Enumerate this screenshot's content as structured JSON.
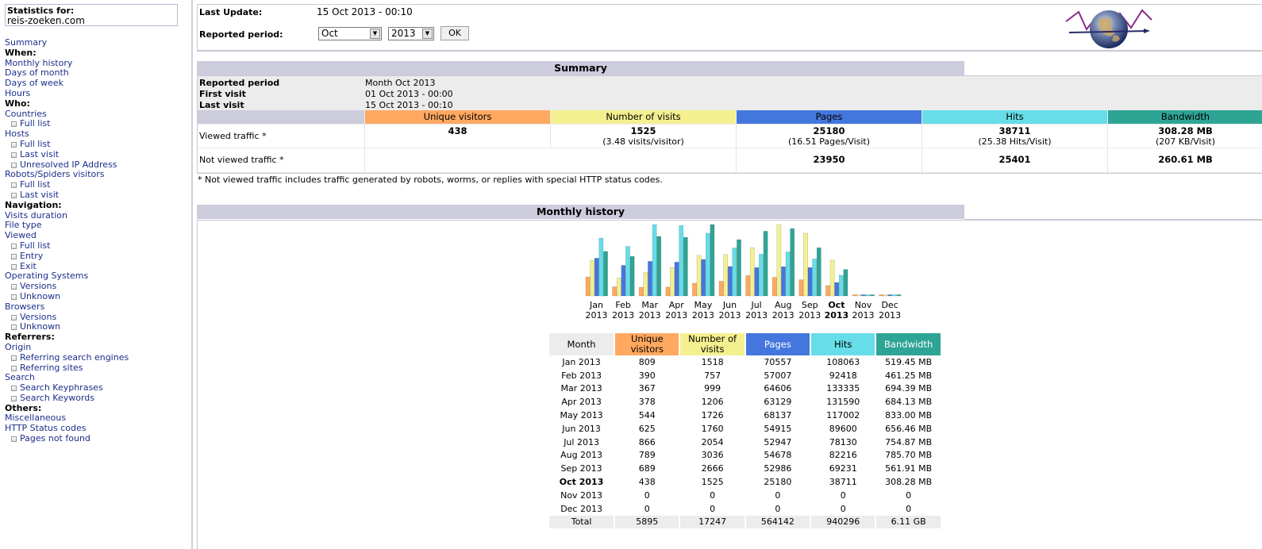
{
  "menu": {
    "stats_title": "Statistics for:",
    "domain": "reis-zoeken.com",
    "items": [
      {
        "label": "Summary",
        "type": "link",
        "level": 0
      },
      {
        "label": "When:",
        "type": "heading",
        "level": 0
      },
      {
        "label": "Monthly history",
        "type": "link",
        "level": 0
      },
      {
        "label": "Days of month",
        "type": "link",
        "level": 0
      },
      {
        "label": "Days of week",
        "type": "link",
        "level": 0
      },
      {
        "label": "Hours",
        "type": "link",
        "level": 0
      },
      {
        "label": "Who:",
        "type": "heading",
        "level": 0
      },
      {
        "label": "Countries",
        "type": "link",
        "level": 0
      },
      {
        "label": "Full list",
        "type": "link",
        "level": 1
      },
      {
        "label": "Hosts",
        "type": "link",
        "level": 0
      },
      {
        "label": "Full list",
        "type": "link",
        "level": 1
      },
      {
        "label": "Last visit",
        "type": "link",
        "level": 1
      },
      {
        "label": "Unresolved IP Address",
        "type": "link",
        "level": 1
      },
      {
        "label": "Robots/Spiders visitors",
        "type": "link",
        "level": 0
      },
      {
        "label": "Full list",
        "type": "link",
        "level": 1
      },
      {
        "label": "Last visit",
        "type": "link",
        "level": 1
      },
      {
        "label": "Navigation:",
        "type": "heading",
        "level": 0
      },
      {
        "label": "Visits duration",
        "type": "link",
        "level": 0
      },
      {
        "label": "File type",
        "type": "link",
        "level": 0
      },
      {
        "label": "Viewed",
        "type": "link",
        "level": 0
      },
      {
        "label": "Full list",
        "type": "link",
        "level": 1
      },
      {
        "label": "Entry",
        "type": "link",
        "level": 1
      },
      {
        "label": "Exit",
        "type": "link",
        "level": 1
      },
      {
        "label": "Operating Systems",
        "type": "link",
        "level": 0
      },
      {
        "label": "Versions",
        "type": "link",
        "level": 1
      },
      {
        "label": "Unknown",
        "type": "link",
        "level": 1
      },
      {
        "label": "Browsers",
        "type": "link",
        "level": 0
      },
      {
        "label": "Versions",
        "type": "link",
        "level": 1
      },
      {
        "label": "Unknown",
        "type": "link",
        "level": 1
      },
      {
        "label": "Referrers:",
        "type": "heading",
        "level": 0
      },
      {
        "label": "Origin",
        "type": "link",
        "level": 0
      },
      {
        "label": "Referring search engines",
        "type": "link",
        "level": 1
      },
      {
        "label": "Referring sites",
        "type": "link",
        "level": 1
      },
      {
        "label": "Search",
        "type": "link",
        "level": 0
      },
      {
        "label": "Search Keyphrases",
        "type": "link",
        "level": 1
      },
      {
        "label": "Search Keywords",
        "type": "link",
        "level": 1
      },
      {
        "label": "Others:",
        "type": "heading",
        "level": 0
      },
      {
        "label": "Miscellaneous",
        "type": "link",
        "level": 0
      },
      {
        "label": "HTTP Status codes",
        "type": "link",
        "level": 0
      },
      {
        "label": "Pages not found",
        "type": "link",
        "level": 1
      }
    ]
  },
  "header": {
    "last_update_label": "Last Update:",
    "last_update_value": "15 Oct 2013 - 00:10",
    "period_label": "Reported period:",
    "month_select": "Oct",
    "year_select": "2013",
    "ok_label": "OK"
  },
  "colors": {
    "visitors": "#ffa860",
    "visits": "#f4f090",
    "pages": "#4477dd",
    "hits": "#66dde8",
    "bandwidth": "#2ea495",
    "section_bg": "#ccccdd"
  },
  "summary": {
    "title": "Summary",
    "reported_period_label": "Reported period",
    "reported_period_value": "Month Oct 2013",
    "first_visit_label": "First visit",
    "first_visit_value": "01 Oct 2013 - 00:00",
    "last_visit_label": "Last visit",
    "last_visit_value": "15 Oct 2013 - 00:10",
    "columns": [
      "Unique visitors",
      "Number of visits",
      "Pages",
      "Hits",
      "Bandwidth"
    ],
    "viewed_label": "Viewed traffic *",
    "viewed": {
      "visitors": "438",
      "visits": "1525",
      "visits_sub": "(3.48 visits/visitor)",
      "pages": "25180",
      "pages_sub": "(16.51 Pages/Visit)",
      "hits": "38711",
      "hits_sub": "(25.38 Hits/Visit)",
      "bandwidth": "308.28 MB",
      "bandwidth_sub": "(207 KB/Visit)"
    },
    "not_viewed_label": "Not viewed traffic *",
    "not_viewed": {
      "pages": "23950",
      "hits": "25401",
      "bandwidth": "260.61 MB"
    },
    "footnote": "* Not viewed traffic includes traffic generated by robots, worms, or replies with special HTTP status codes."
  },
  "history": {
    "title": "Monthly history",
    "columns": [
      "Month",
      "Unique visitors",
      "Number of visits",
      "Pages",
      "Hits",
      "Bandwidth"
    ],
    "rows": [
      [
        "Jan 2013",
        "809",
        "1518",
        "70557",
        "108063",
        "519.45 MB"
      ],
      [
        "Feb 2013",
        "390",
        "757",
        "57007",
        "92418",
        "461.25 MB"
      ],
      [
        "Mar 2013",
        "367",
        "999",
        "64606",
        "133335",
        "694.39 MB"
      ],
      [
        "Apr 2013",
        "378",
        "1206",
        "63129",
        "131590",
        "684.13 MB"
      ],
      [
        "May 2013",
        "544",
        "1726",
        "68137",
        "117002",
        "833.00 MB"
      ],
      [
        "Jun 2013",
        "625",
        "1760",
        "54915",
        "89600",
        "656.46 MB"
      ],
      [
        "Jul 2013",
        "866",
        "2054",
        "52947",
        "78130",
        "754.87 MB"
      ],
      [
        "Aug 2013",
        "789",
        "3036",
        "54678",
        "82216",
        "785.70 MB"
      ],
      [
        "Sep 2013",
        "689",
        "2666",
        "52986",
        "69231",
        "561.91 MB"
      ],
      [
        "Oct 2013",
        "438",
        "1525",
        "25180",
        "38711",
        "308.28 MB"
      ],
      [
        "Nov 2013",
        "0",
        "0",
        "0",
        "0",
        "0"
      ],
      [
        "Dec 2013",
        "0",
        "0",
        "0",
        "0",
        "0"
      ]
    ],
    "current_month_index": 9,
    "total": [
      "Total",
      "5895",
      "17247",
      "564142",
      "940296",
      "6.11 GB"
    ]
  },
  "chart_data": {
    "type": "bar",
    "categories": [
      "Jan",
      "Feb",
      "Mar",
      "Apr",
      "May",
      "Jun",
      "Jul",
      "Aug",
      "Sep",
      "Oct",
      "Nov",
      "Dec"
    ],
    "category_years": [
      "2013",
      "2013",
      "2013",
      "2013",
      "2013",
      "2013",
      "2013",
      "2013",
      "2013",
      "2013",
      "2013",
      "2013"
    ],
    "series": [
      {
        "name": "Unique visitors",
        "values": [
          809,
          390,
          367,
          378,
          544,
          625,
          866,
          789,
          689,
          438,
          0,
          0
        ]
      },
      {
        "name": "Number of visits",
        "values": [
          1518,
          757,
          999,
          1206,
          1726,
          1760,
          2054,
          3036,
          2666,
          1525,
          0,
          0
        ]
      },
      {
        "name": "Pages",
        "values": [
          70557,
          57007,
          64606,
          63129,
          68137,
          54915,
          52947,
          54678,
          52986,
          25180,
          0,
          0
        ]
      },
      {
        "name": "Hits",
        "values": [
          108063,
          92418,
          133335,
          131590,
          117002,
          89600,
          78130,
          82216,
          69231,
          38711,
          0,
          0
        ]
      },
      {
        "name": "Bandwidth",
        "values": [
          519.45,
          461.25,
          694.39,
          684.13,
          833.0,
          656.46,
          754.87,
          785.7,
          561.91,
          308.28,
          0,
          0
        ]
      }
    ],
    "scale_groups": [
      [
        0,
        1
      ],
      [
        2,
        3
      ],
      [
        4
      ]
    ],
    "highlight_category": "Oct",
    "grid": false,
    "legend": "none"
  }
}
